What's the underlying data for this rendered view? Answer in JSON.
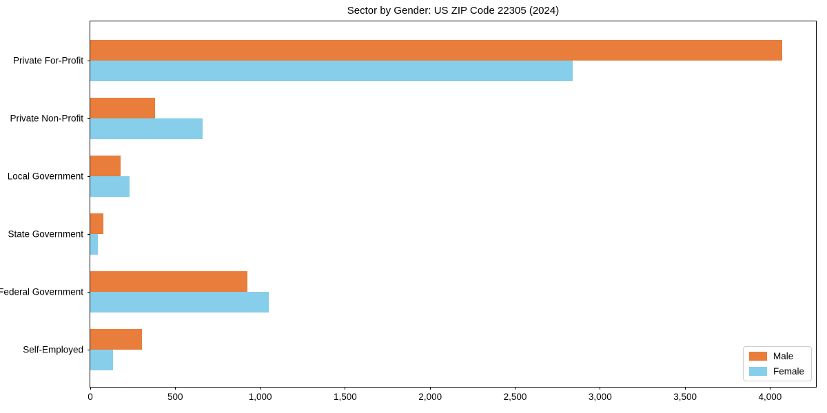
{
  "chart_data": {
    "type": "bar",
    "orientation": "horizontal",
    "title": "Sector by Gender: US ZIP Code 22305 (2024)",
    "categories": [
      "Private For-Profit",
      "Private Non-Profit",
      "Local Government",
      "State Government",
      "Federal Government",
      "Self-Employed"
    ],
    "series": [
      {
        "name": "Male",
        "color": "#e87d3c",
        "values": [
          4070,
          380,
          180,
          77,
          925,
          305
        ]
      },
      {
        "name": "Female",
        "color": "#87ceeb",
        "values": [
          2840,
          660,
          230,
          43,
          1050,
          135
        ]
      }
    ],
    "xlabel": "",
    "ylabel": "",
    "xlim": [
      0,
      4270
    ],
    "xticks": [
      0,
      500,
      1000,
      1500,
      2000,
      2500,
      3000,
      3500,
      4000
    ],
    "xtick_labels": [
      "0",
      "500",
      "1,000",
      "1,500",
      "2,000",
      "2,500",
      "3,000",
      "3,500",
      "4,000"
    ],
    "grid": false,
    "legend_position": "lower right",
    "spine_color": "#000000",
    "background": "#ffffff"
  }
}
